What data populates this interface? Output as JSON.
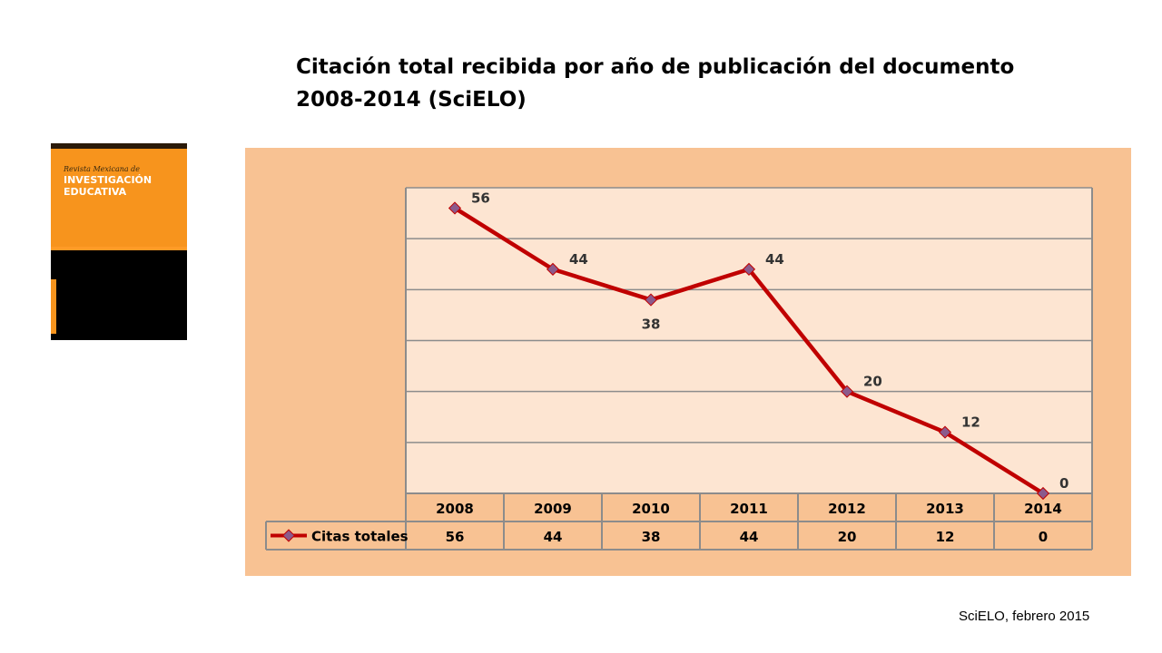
{
  "title": {
    "line1": "Citación total recibida por año de publicación del documento",
    "line2": "2008-2014 (SciELO)"
  },
  "cover": {
    "small": "Revista Mexicana de",
    "big_line1": "INVESTIGACIÓN",
    "big_line2": "EDUCATIVA"
  },
  "footer": "SciELO, febrero 2015",
  "colors": {
    "panel": "#f8c293",
    "plot": "#fde5d2",
    "line": "#c00000",
    "marker": "#8b5a8c"
  },
  "chart_data": {
    "type": "line",
    "title": "",
    "x": [
      "2008",
      "2009",
      "2010",
      "2011",
      "2012",
      "2013",
      "2014"
    ],
    "series": [
      {
        "name": "Citas totales",
        "values": [
          56,
          44,
          38,
          44,
          20,
          12,
          0
        ]
      }
    ],
    "ylim": [
      0,
      60
    ],
    "y_gridline_step": 10,
    "y_tick_labels": "none",
    "grid": true,
    "data_labels": true,
    "data_table": true,
    "legend": "data-table-row"
  }
}
